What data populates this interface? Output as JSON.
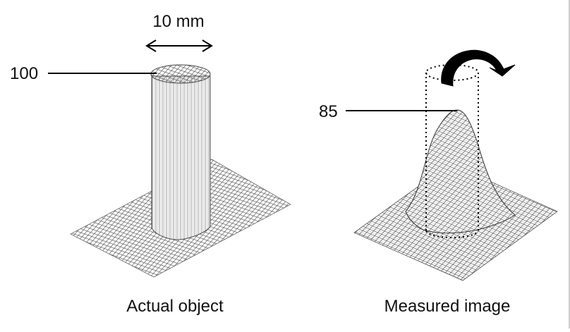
{
  "diagram": {
    "left_panel": {
      "width_annotation": "10 mm",
      "peak_label": "100",
      "caption": "Actual object"
    },
    "right_panel": {
      "peak_label": "85",
      "caption": "Measured image"
    }
  }
}
